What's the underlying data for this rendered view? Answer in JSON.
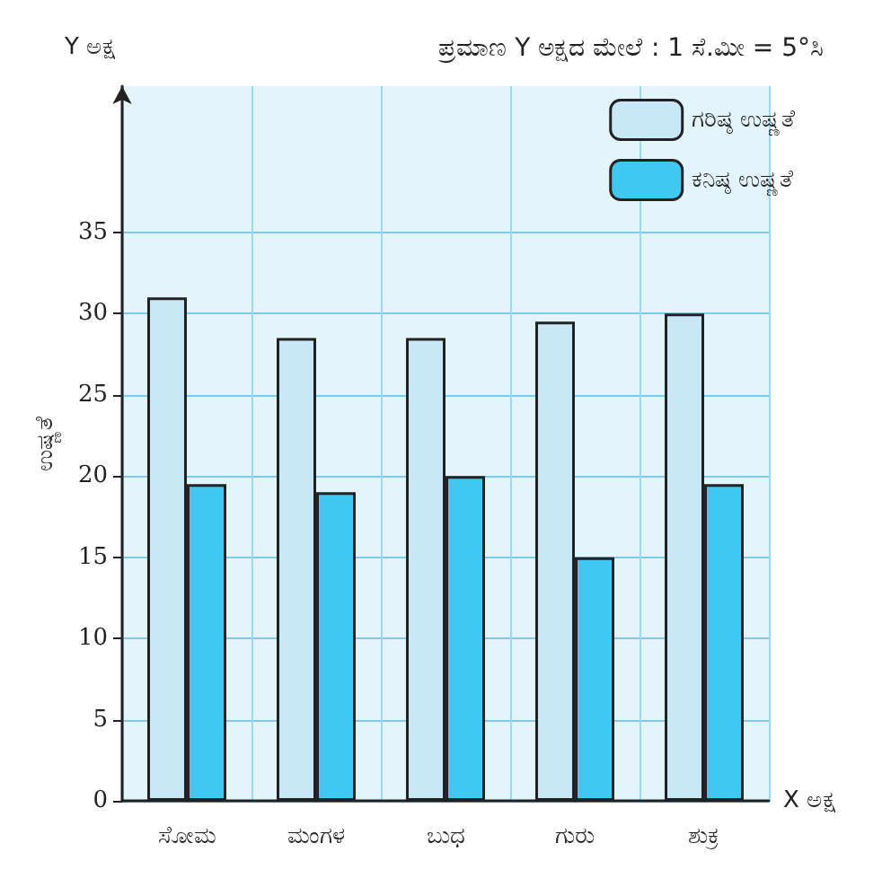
{
  "chart_data": {
    "type": "bar",
    "xlabel": "X ಅಕ್ಷ",
    "ylabel": "ಉಷ್ಣತೆ",
    "annotations": [
      "ಪ್ರಮಾಣ Y ಅಕ್ಷದ ಮೇಲೆ : 1 ಸೆ.ಮೀ = 5°ಸಿ",
      "Y ಅಕ್ಷ"
    ],
    "categories": [
      "ಸೋಮ",
      "ಮಂಗಳ",
      "ಬುಧ",
      "ಗುರು",
      "ಶುಕ್ರ"
    ],
    "series": [
      {
        "name": "ಗರಿಷ್ಠ ಉಷ್ಣತೆ",
        "color": "#c8e8f8",
        "values": [
          31,
          28.5,
          28.5,
          29.5,
          30
        ]
      },
      {
        "name": "ಕನಿಷ್ಠ ಉಷ್ಣತೆ",
        "color": "#40c8f0",
        "values": [
          19.5,
          19,
          20,
          15,
          19.5
        ]
      }
    ],
    "ylim": [
      0,
      44
    ],
    "yticks": [
      0,
      5,
      10,
      15,
      20,
      25,
      30,
      35
    ],
    "grid": true,
    "legend": "top right"
  }
}
